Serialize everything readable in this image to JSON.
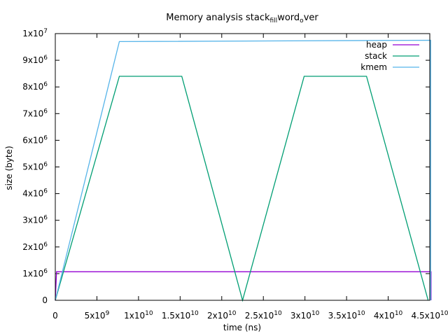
{
  "chart_data": {
    "type": "line",
    "title": {
      "main": "Memory analysis stack",
      "sub1": "fill",
      "mid": "word",
      "sub2": "o",
      "tail": "ver"
    },
    "xlabel": "time (ns)",
    "ylabel": "size (byte)",
    "xlim": [
      0,
      45000000000
    ],
    "ylim": [
      0,
      10000000
    ],
    "x_ticks": [
      {
        "value": 0,
        "mantissa": "0",
        "exp": ""
      },
      {
        "value": 5000000000,
        "mantissa": "5x10",
        "exp": "9"
      },
      {
        "value": 10000000000,
        "mantissa": "1x10",
        "exp": "10"
      },
      {
        "value": 15000000000,
        "mantissa": "1.5x10",
        "exp": "10"
      },
      {
        "value": 20000000000,
        "mantissa": "2x10",
        "exp": "10"
      },
      {
        "value": 25000000000,
        "mantissa": "2.5x10",
        "exp": "10"
      },
      {
        "value": 30000000000,
        "mantissa": "3x10",
        "exp": "10"
      },
      {
        "value": 35000000000,
        "mantissa": "3.5x10",
        "exp": "10"
      },
      {
        "value": 40000000000,
        "mantissa": "4x10",
        "exp": "10"
      },
      {
        "value": 45000000000,
        "mantissa": "4.5x10",
        "exp": "10"
      }
    ],
    "y_ticks": [
      {
        "value": 0,
        "mantissa": "0",
        "exp": ""
      },
      {
        "value": 1000000,
        "mantissa": "1x10",
        "exp": "6"
      },
      {
        "value": 2000000,
        "mantissa": "2x10",
        "exp": "6"
      },
      {
        "value": 3000000,
        "mantissa": "3x10",
        "exp": "6"
      },
      {
        "value": 4000000,
        "mantissa": "4x10",
        "exp": "6"
      },
      {
        "value": 5000000,
        "mantissa": "5x10",
        "exp": "6"
      },
      {
        "value": 6000000,
        "mantissa": "6x10",
        "exp": "6"
      },
      {
        "value": 7000000,
        "mantissa": "7x10",
        "exp": "6"
      },
      {
        "value": 8000000,
        "mantissa": "8x10",
        "exp": "6"
      },
      {
        "value": 9000000,
        "mantissa": "9x10",
        "exp": "6"
      },
      {
        "value": 10000000,
        "mantissa": "1x10",
        "exp": "7"
      }
    ],
    "legend_position": "top-right",
    "series": [
      {
        "name": "heap",
        "color": "#9400d3",
        "x": [
          0,
          150000000,
          45150000000,
          45150000000
        ],
        "y": [
          0,
          1070000,
          1070000,
          0
        ]
      },
      {
        "name": "stack",
        "color": "#009e73",
        "x": [
          0,
          7700000000,
          15200000000,
          22500000000,
          29900000000,
          37400000000,
          44800000000
        ],
        "y": [
          0,
          8400000,
          8400000,
          0,
          8400000,
          8400000,
          0
        ]
      },
      {
        "name": "kmem",
        "color": "#56b4e9",
        "x": [
          0,
          7700000000,
          45100000000,
          45100000000
        ],
        "y": [
          0,
          9700000,
          9750000,
          0
        ]
      }
    ]
  }
}
